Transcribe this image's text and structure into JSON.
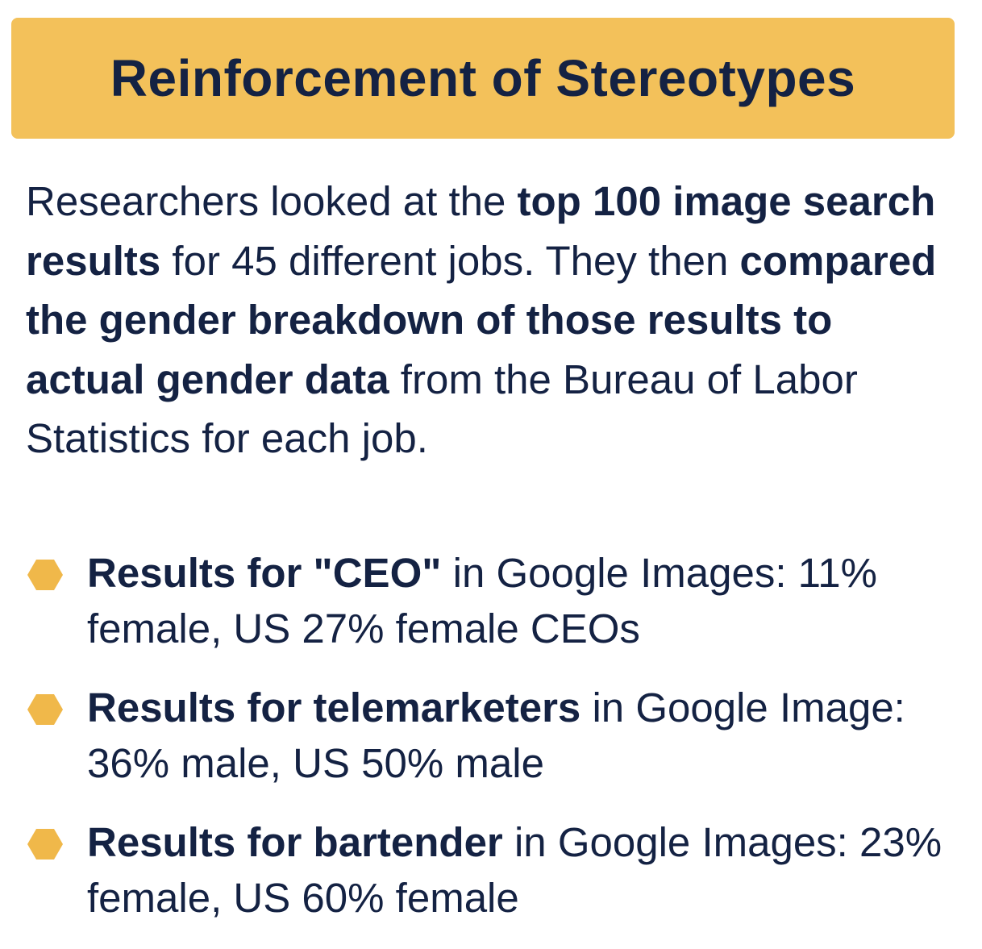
{
  "title": "Reinforcement of Stereotypes",
  "intro": {
    "t1": "Researchers looked at the ",
    "b1": "top 100 image search results",
    "t2": " for 45 different jobs. They then ",
    "b2": "compared the gender breakdown of those results to actual gender data",
    "t3": " from the Bureau of Labor Statistics for each job."
  },
  "bullets": [
    {
      "bold": "Results for \"CEO\"",
      "rest": " in Google Images: 11% female, US 27% female CEOs",
      "icon": "hexagon-bullet-icon"
    },
    {
      "bold": "Results for telemarketers",
      "rest": " in Google Image: 36% male, US 50% male",
      "icon": "hexagon-bullet-icon"
    },
    {
      "bold": "Results for bartender",
      "rest": " in Google Images: 23% female, US 60% female",
      "icon": "hexagon-bullet-icon"
    }
  ],
  "colors": {
    "banner": "#f3c15a",
    "text": "#142243",
    "bullet": "#f0b84a"
  }
}
